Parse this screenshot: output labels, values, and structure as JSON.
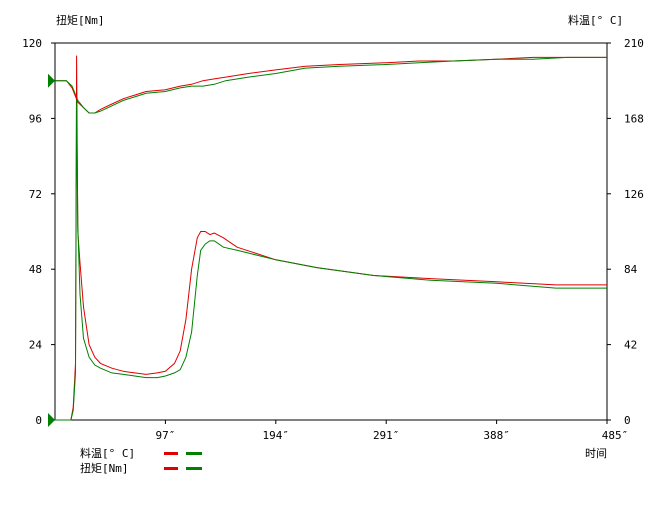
{
  "chart_data": {
    "type": "line",
    "left_axis_title": "扭矩[Nm]",
    "right_axis_title": "料温[° C]",
    "x_axis_title": "时间",
    "left_ticks": [
      "0",
      "24",
      "48",
      "72",
      "96",
      "120"
    ],
    "right_ticks": [
      "0",
      "42",
      "84",
      "126",
      "168",
      "210"
    ],
    "x_ticks": [
      "97″",
      "194″",
      "291″",
      "388″",
      "485″"
    ],
    "x_tick_values": [
      97,
      194,
      291,
      388,
      485
    ],
    "xlim": [
      0,
      485
    ],
    "ylim_left": [
      0,
      120
    ],
    "ylim_right": [
      0,
      210
    ],
    "grid": false,
    "colors": {
      "red": "#e00000",
      "green": "#008000"
    },
    "series": [
      {
        "name": "料温[° C]",
        "axis": "right",
        "run": 1,
        "color": "#e00000",
        "x": [
          0,
          10,
          15,
          20,
          25,
          30,
          35,
          40,
          50,
          60,
          70,
          80,
          97,
          110,
          120,
          130,
          140,
          150,
          170,
          194,
          220,
          250,
          291,
          320,
          350,
          388,
          420,
          450,
          485
        ],
        "y": [
          189,
          189,
          185,
          177,
          174,
          171,
          171,
          173,
          176,
          179,
          181,
          183,
          184,
          186,
          187,
          189,
          190,
          191,
          193,
          195,
          197,
          198,
          199,
          200,
          200,
          201,
          202,
          202,
          202
        ]
      },
      {
        "name": "料温[° C]",
        "axis": "right",
        "run": 2,
        "color": "#008000",
        "x": [
          0,
          10,
          15,
          20,
          25,
          30,
          35,
          40,
          50,
          60,
          70,
          80,
          97,
          110,
          120,
          130,
          140,
          150,
          170,
          194,
          220,
          250,
          291,
          320,
          350,
          388,
          420,
          450,
          485
        ],
        "y": [
          189,
          189,
          186,
          178,
          174,
          171,
          171,
          172,
          175,
          178,
          180,
          182,
          183,
          185,
          186,
          186,
          187,
          189,
          191,
          193,
          196,
          197,
          198,
          199,
          200,
          201,
          201,
          202,
          202
        ]
      },
      {
        "name": "扭矩[Nm]",
        "axis": "left",
        "run": 1,
        "color": "#e00000",
        "x": [
          0,
          14,
          16,
          18,
          19,
          20,
          22,
          25,
          30,
          35,
          40,
          50,
          60,
          70,
          80,
          90,
          97,
          105,
          110,
          115,
          120,
          125,
          128,
          132,
          136,
          140,
          148,
          160,
          194,
          230,
          280,
          330,
          388,
          440,
          485
        ],
        "y": [
          0,
          0,
          4,
          18,
          116,
          60,
          50,
          36,
          24,
          20,
          18,
          16.5,
          15.5,
          15,
          14.5,
          15,
          15.5,
          18,
          22,
          32,
          48,
          58,
          60,
          60,
          59,
          59.5,
          58,
          55,
          51,
          48.5,
          46,
          45,
          44,
          43,
          43
        ]
      },
      {
        "name": "扭矩[Nm]",
        "axis": "left",
        "run": 2,
        "color": "#008000",
        "x": [
          0,
          14,
          16,
          18,
          19,
          20,
          22,
          25,
          30,
          35,
          40,
          50,
          60,
          70,
          80,
          90,
          97,
          105,
          110,
          115,
          120,
          125,
          128,
          132,
          136,
          140,
          148,
          160,
          194,
          230,
          280,
          330,
          388,
          440,
          485
        ],
        "y": [
          0,
          0,
          3,
          15,
          102,
          62,
          40,
          26,
          20,
          17.5,
          16.5,
          15,
          14.5,
          14,
          13.5,
          13.5,
          14,
          15,
          16,
          20,
          28,
          46,
          54,
          56,
          57,
          57,
          55,
          54,
          51,
          48.5,
          46,
          44.5,
          43.5,
          42,
          42
        ]
      }
    ]
  },
  "legend": [
    {
      "label": "料温[° C]",
      "colors": [
        "#e00000",
        "#008000"
      ]
    },
    {
      "label": "扭矩[Nm]",
      "colors": [
        "#e00000",
        "#008000"
      ]
    }
  ]
}
